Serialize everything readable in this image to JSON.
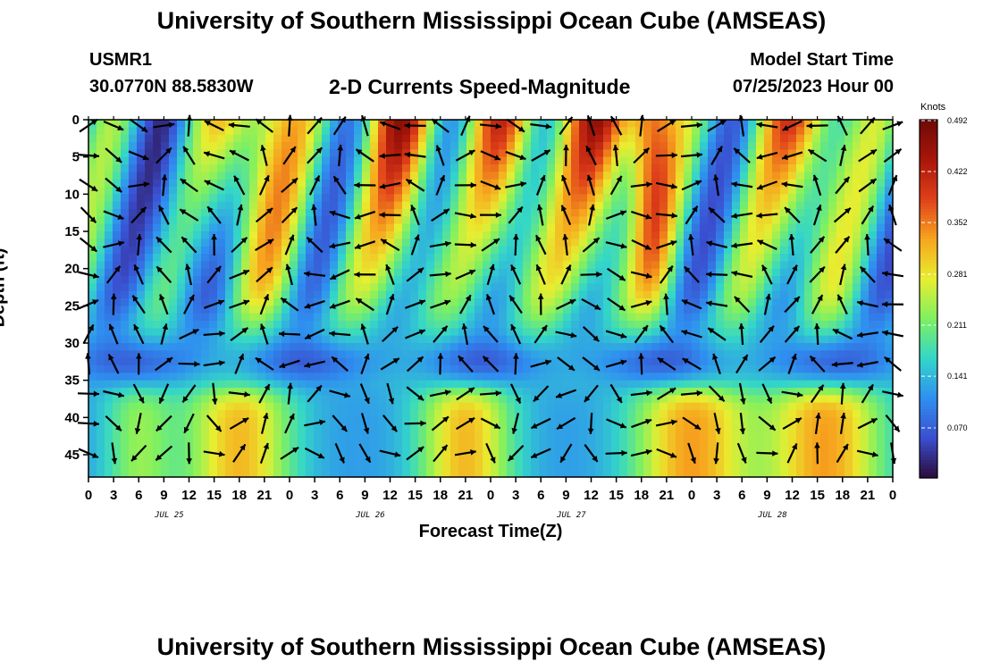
{
  "header": {
    "title": "University of Southern Mississippi Ocean Cube (AMSEAS)",
    "station": "USMR1",
    "coords": "30.0770N  88.5830W",
    "subtitle": "2-D Currents Speed-Magnitude",
    "model_start_label": "Model Start Time",
    "model_start_value": "07/25/2023 Hour 00"
  },
  "footer": {
    "title": "University of Southern Mississippi Ocean Cube (AMSEAS)"
  },
  "colorbar": {
    "unit": "Knots",
    "ticks": [
      "0.492",
      "0.422",
      "0.352",
      "0.281",
      "0.211",
      "0.141",
      "0.070"
    ],
    "colors": [
      "#2b0a3a",
      "#3a4fd0",
      "#2f8ff0",
      "#33d6c8",
      "#7ff060",
      "#e8ee30",
      "#f7a51e",
      "#e0401a",
      "#a8160a",
      "#6e0a05"
    ]
  },
  "chart_data": {
    "type": "heatmap",
    "title": "2-D Currents Speed-Magnitude",
    "xlabel": "Forecast Time(Z)",
    "ylabel": "Depth (ft)",
    "x_ticks": [
      "0",
      "3",
      "6",
      "9",
      "12",
      "15",
      "18",
      "21",
      "0",
      "3",
      "6",
      "9",
      "12",
      "15",
      "18",
      "21",
      "0",
      "3",
      "6",
      "9",
      "12",
      "15",
      "18",
      "21",
      "0",
      "3",
      "6",
      "9",
      "12",
      "15",
      "18",
      "21",
      "0"
    ],
    "x_range_hours": [
      0,
      96
    ],
    "date_labels": [
      "JUL 25",
      "JUL 26",
      "JUL 27",
      "JUL 28"
    ],
    "y_ticks": [
      "0",
      "5",
      "10",
      "15",
      "20",
      "25",
      "30",
      "35",
      "40",
      "45"
    ],
    "y_range_ft": [
      0,
      48
    ],
    "value_range_knots": [
      0.0,
      0.492
    ],
    "notes": "Speed magnitude color field with current direction vectors (arrows)"
  }
}
